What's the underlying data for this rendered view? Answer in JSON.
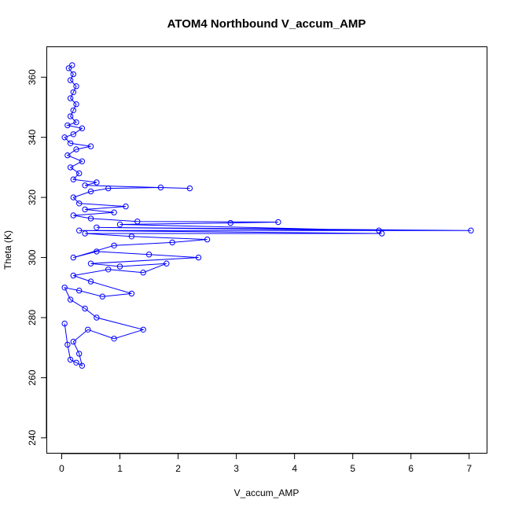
{
  "chart_data": {
    "type": "line",
    "title": "ATOM4 Northbound V_accum_AMP",
    "xlabel": "V_accum_AMP",
    "ylabel": "Theta (K)",
    "xlim": [
      -0.25,
      7.3
    ],
    "ylim": [
      235,
      370
    ],
    "xticks": [
      0,
      1,
      2,
      3,
      4,
      5,
      6,
      7
    ],
    "xtick_labels": [
      "0",
      "1",
      "2",
      "3",
      "4",
      "5",
      "6",
      "7"
    ],
    "yticks": [
      240,
      260,
      280,
      300,
      320,
      340,
      360
    ],
    "ytick_labels": [
      "240",
      "260",
      "280",
      "300",
      "320",
      "340",
      "360"
    ],
    "grid": false,
    "legend": "none",
    "marker": "open-circle",
    "colors": {
      "series": "#0000ff",
      "axis": "#000000",
      "background": "#ffffff"
    },
    "series": [
      {
        "values": [
          [
            0.05,
            278
          ],
          [
            0.1,
            271
          ],
          [
            0.15,
            266
          ],
          [
            0.25,
            265
          ],
          [
            0.35,
            264
          ],
          [
            0.3,
            268
          ],
          [
            0.2,
            272
          ],
          [
            0.45,
            276
          ],
          [
            0.9,
            273
          ],
          [
            1.4,
            276
          ],
          [
            0.6,
            280
          ],
          [
            0.4,
            283
          ],
          [
            0.15,
            286
          ],
          [
            0.05,
            290
          ],
          [
            0.3,
            289
          ],
          [
            0.7,
            287
          ],
          [
            1.2,
            288
          ],
          [
            0.5,
            292
          ],
          [
            0.2,
            294
          ],
          [
            0.8,
            296
          ],
          [
            1.4,
            295
          ],
          [
            1.8,
            298
          ],
          [
            1.0,
            297
          ],
          [
            0.5,
            298
          ],
          [
            2.35,
            300
          ],
          [
            1.5,
            301
          ],
          [
            0.6,
            302
          ],
          [
            0.2,
            300
          ],
          [
            0.9,
            304
          ],
          [
            1.9,
            305
          ],
          [
            2.5,
            306
          ],
          [
            1.2,
            307
          ],
          [
            0.4,
            308
          ],
          [
            5.5,
            308
          ],
          [
            0.3,
            309
          ],
          [
            7.03,
            309
          ],
          [
            0.6,
            310
          ],
          [
            5.45,
            309
          ],
          [
            1.0,
            311
          ],
          [
            2.9,
            311.5
          ],
          [
            3.72,
            311.8
          ],
          [
            1.3,
            312
          ],
          [
            0.5,
            313
          ],
          [
            0.2,
            314
          ],
          [
            0.9,
            315
          ],
          [
            0.4,
            316
          ],
          [
            1.1,
            317
          ],
          [
            0.3,
            318
          ],
          [
            0.2,
            320
          ],
          [
            0.5,
            322
          ],
          [
            0.8,
            323
          ],
          [
            1.7,
            323.3
          ],
          [
            2.2,
            323
          ],
          [
            0.4,
            324
          ],
          [
            0.6,
            325
          ],
          [
            0.2,
            326
          ],
          [
            0.3,
            328
          ],
          [
            0.15,
            330
          ],
          [
            0.35,
            332
          ],
          [
            0.1,
            334
          ],
          [
            0.25,
            336
          ],
          [
            0.5,
            337
          ],
          [
            0.15,
            338
          ],
          [
            0.05,
            340
          ],
          [
            0.2,
            341
          ],
          [
            0.35,
            343
          ],
          [
            0.1,
            344
          ],
          [
            0.25,
            345
          ],
          [
            0.15,
            347
          ],
          [
            0.2,
            349
          ],
          [
            0.25,
            351
          ],
          [
            0.15,
            353
          ],
          [
            0.2,
            355
          ],
          [
            0.25,
            357
          ],
          [
            0.15,
            359
          ],
          [
            0.2,
            361
          ],
          [
            0.12,
            363
          ],
          [
            0.18,
            364
          ]
        ]
      }
    ]
  }
}
